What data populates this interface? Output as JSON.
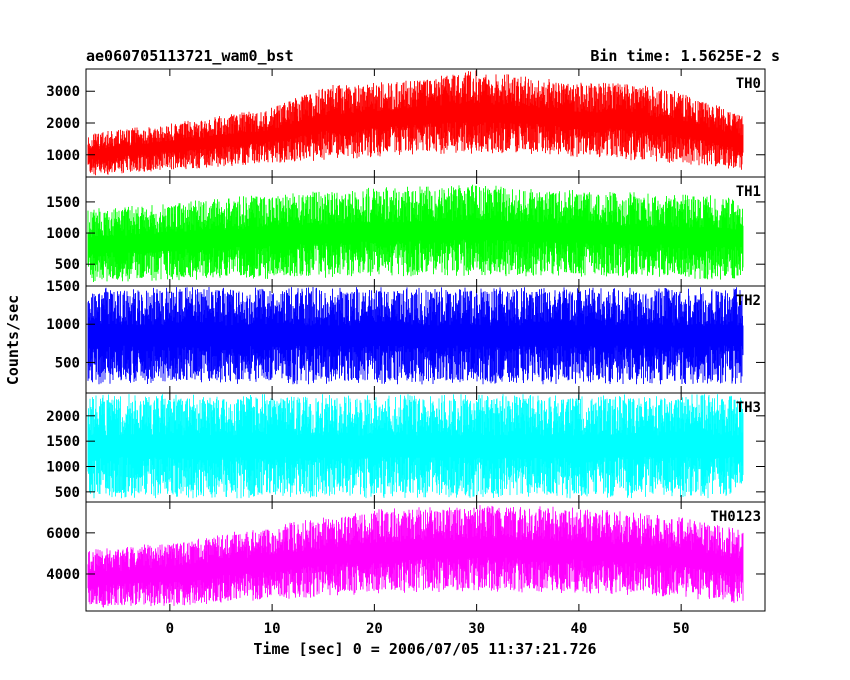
{
  "header": {
    "title": "ae060705113721_wam0_bst",
    "bin_time": "Bin time: 1.5625E-2 s"
  },
  "chart_data": {
    "type": "line",
    "xlabel": "Time [sec] 0 = 2006/07/05 11:37:21.726",
    "ylabel": "Counts/sec",
    "xlim": [
      -8.2,
      58.2
    ],
    "x_ticks": [
      0,
      10,
      20,
      30,
      40,
      50
    ],
    "x_data_range": [
      -8,
      56
    ],
    "panels": [
      {
        "name": "TH0",
        "color": "#ff0000",
        "ylim": [
          300,
          3700
        ],
        "y_ticks": [
          1000,
          2000,
          3000
        ],
        "envelope": {
          "x": [
            -8,
            0,
            10,
            15,
            20,
            25,
            30,
            35,
            40,
            45,
            50,
            56
          ],
          "low": [
            300,
            500,
            700,
            800,
            900,
            1000,
            1000,
            1000,
            900,
            800,
            700,
            500
          ],
          "high": [
            1700,
            2000,
            2500,
            3200,
            3300,
            3500,
            3700,
            3500,
            3300,
            3300,
            3000,
            2300
          ]
        }
      },
      {
        "name": "TH1",
        "color": "#00ff00",
        "ylim": [
          150,
          1900
        ],
        "y_ticks": [
          500,
          1000,
          1500
        ],
        "envelope": {
          "x": [
            -8,
            0,
            10,
            20,
            30,
            40,
            50,
            56
          ],
          "low": [
            200,
            220,
            250,
            280,
            300,
            280,
            250,
            230
          ],
          "high": [
            1400,
            1500,
            1650,
            1750,
            1800,
            1700,
            1650,
            1600
          ]
        }
      },
      {
        "name": "TH2",
        "color": "#0000ff",
        "ylim": [
          100,
          1500
        ],
        "y_ticks": [
          500,
          1000,
          1500
        ],
        "envelope": {
          "x": [
            -8,
            56
          ],
          "low": [
            200,
            200
          ],
          "high": [
            1500,
            1500
          ]
        }
      },
      {
        "name": "TH3",
        "color": "#00ffff",
        "ylim": [
          300,
          2450
        ],
        "y_ticks": [
          500,
          1000,
          1500,
          2000
        ],
        "envelope": {
          "x": [
            -8,
            56
          ],
          "low": [
            350,
            350
          ],
          "high": [
            2450,
            2450
          ]
        }
      },
      {
        "name": "TH0123",
        "color": "#ff00ff",
        "ylim": [
          2200,
          7500
        ],
        "y_ticks": [
          4000,
          6000
        ],
        "envelope": {
          "x": [
            -8,
            0,
            10,
            20,
            30,
            40,
            50,
            56
          ],
          "low": [
            2300,
            2400,
            2700,
            3000,
            3100,
            3000,
            2800,
            2500
          ],
          "high": [
            5200,
            5600,
            6400,
            7200,
            7400,
            7300,
            6800,
            6200
          ]
        }
      }
    ]
  }
}
